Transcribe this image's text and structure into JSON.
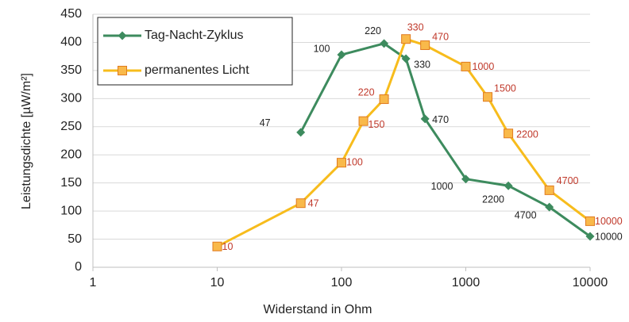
{
  "chart_data": {
    "type": "line",
    "x_log": true,
    "xlabel": "Widerstand in Ohm",
    "ylabel": "Leistungsdichte [µW/m²]",
    "xlim": [
      1,
      10000
    ],
    "xticks": [
      1,
      10,
      100,
      1000,
      10000
    ],
    "ylim": [
      0,
      450
    ],
    "yticks": [
      0,
      50,
      100,
      150,
      200,
      250,
      300,
      350,
      400,
      450
    ],
    "grid": true,
    "legend": "upper left",
    "series": [
      {
        "name": "Tag-Nacht-Zyklus",
        "color": "#3d8b5e",
        "marker": "diamond",
        "label_color": "#222222",
        "x": [
          47,
          100,
          220,
          330,
          470,
          1000,
          2200,
          4700,
          10000
        ],
        "values": [
          240,
          378,
          398,
          371,
          264,
          157,
          145,
          107,
          55
        ]
      },
      {
        "name": "permanentes Licht",
        "color": "#f7bc1c",
        "marker": "square",
        "label_color": "#c0392b",
        "x": [
          10,
          47,
          100,
          150,
          220,
          330,
          470,
          1000,
          1500,
          2200,
          4700,
          10000
        ],
        "values": [
          37,
          114,
          186,
          260,
          299,
          406,
          395,
          357,
          303,
          238,
          137,
          82
        ]
      }
    ]
  }
}
